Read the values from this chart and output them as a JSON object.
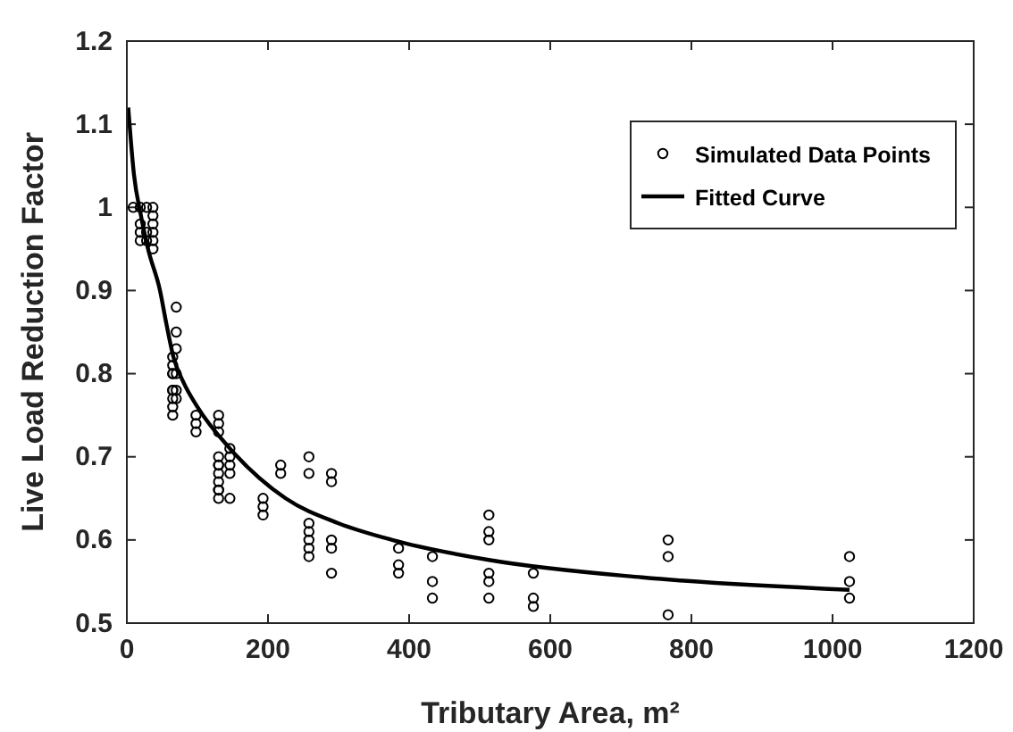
{
  "chart_data": {
    "type": "scatter",
    "xlabel": "Tributary Area, m²",
    "ylabel": "Live Load Reduction Factor",
    "xlim": [
      0,
      1200
    ],
    "xticks": [
      0,
      200,
      400,
      600,
      800,
      1000,
      1200
    ],
    "ylim": [
      0.5,
      1.2
    ],
    "yticks": [
      0.5,
      0.6,
      0.7,
      0.8,
      0.9,
      1,
      1.1,
      1.2
    ],
    "legend": "top right",
    "grid": false,
    "series": [
      {
        "name": "Simulated Data Points",
        "marker": "circle",
        "color": "#000000",
        "x": [
          9,
          19,
          19,
          19,
          19,
          28,
          28,
          28,
          37,
          37,
          37,
          37,
          37,
          37,
          65,
          65,
          65,
          65,
          65,
          65,
          65,
          65,
          65,
          70,
          70,
          70,
          70,
          70,
          70,
          98,
          98,
          98,
          130,
          130,
          130,
          130,
          130,
          130,
          130,
          130,
          130,
          130,
          130,
          146,
          146,
          146,
          146,
          146,
          193,
          193,
          193,
          218,
          218,
          258,
          258,
          258,
          258,
          258,
          258,
          258,
          290,
          290,
          290,
          290,
          290,
          385,
          385,
          385,
          433,
          433,
          433,
          513,
          513,
          513,
          513,
          513,
          513,
          576,
          576,
          576,
          767,
          767,
          767,
          1024,
          1024,
          1024
        ],
        "values": [
          1.0,
          1.0,
          0.98,
          0.97,
          0.96,
          1.0,
          0.97,
          0.96,
          1.0,
          0.99,
          0.98,
          0.97,
          0.96,
          0.95,
          0.82,
          0.81,
          0.8,
          0.8,
          0.78,
          0.78,
          0.77,
          0.76,
          0.75,
          0.88,
          0.85,
          0.83,
          0.8,
          0.78,
          0.77,
          0.75,
          0.74,
          0.73,
          0.75,
          0.74,
          0.73,
          0.7,
          0.69,
          0.69,
          0.68,
          0.67,
          0.66,
          0.66,
          0.65,
          0.71,
          0.7,
          0.69,
          0.68,
          0.65,
          0.65,
          0.64,
          0.63,
          0.69,
          0.68,
          0.7,
          0.68,
          0.62,
          0.61,
          0.6,
          0.59,
          0.58,
          0.68,
          0.67,
          0.6,
          0.59,
          0.56,
          0.59,
          0.57,
          0.56,
          0.58,
          0.55,
          0.53,
          0.63,
          0.61,
          0.6,
          0.56,
          0.55,
          0.53,
          0.56,
          0.53,
          0.52,
          0.6,
          0.58,
          0.51,
          0.58,
          0.55,
          0.53
        ]
      },
      {
        "name": "Fitted Curve",
        "type": "line",
        "line_style": "solid",
        "color": "#000000",
        "x": [
          2,
          10,
          20,
          30,
          47,
          56,
          66,
          80,
          100,
          146,
          225,
          300,
          376,
          513,
          730,
          1024
        ],
        "values": [
          1.12,
          1.04,
          0.99,
          0.95,
          0.9,
          0.86,
          0.82,
          0.79,
          0.76,
          0.71,
          0.65,
          0.62,
          0.6,
          0.576,
          0.555,
          0.54
        ]
      }
    ]
  }
}
